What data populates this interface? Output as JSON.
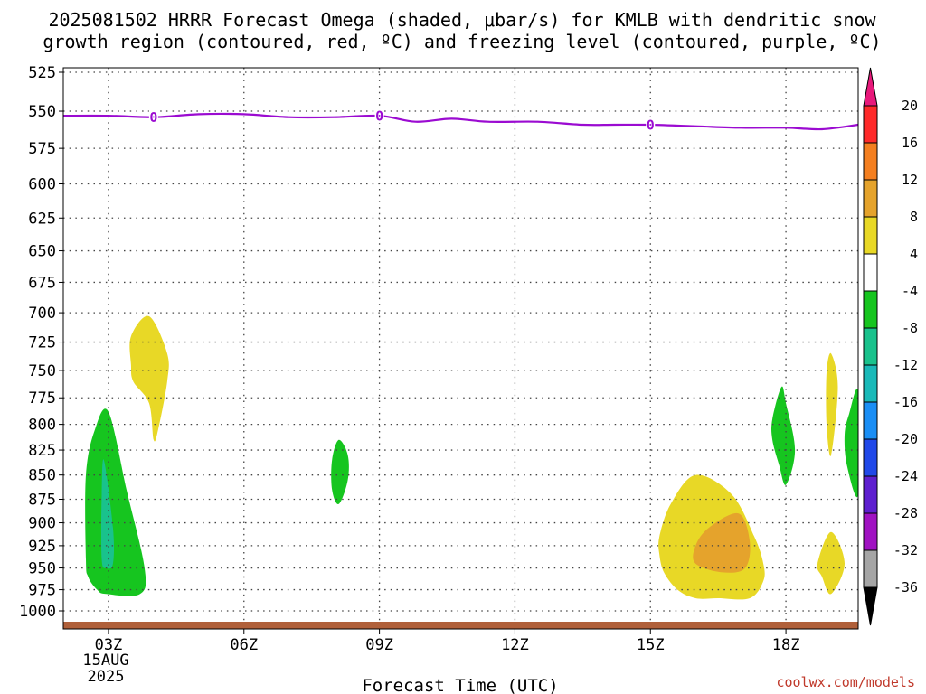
{
  "title": {
    "line1": "2025081502 HRRR Forecast Omega (shaded, μbar/s) for KMLB with dendritic snow",
    "line2": "growth region (contoured, red, ºC) and freezing level (contoured, purple, ºC)"
  },
  "credit": "coolwx.com/models",
  "chart_data": {
    "type": "contour",
    "title": "2025081502 HRRR Forecast Omega (shaded, μbar/s) for KMLB with dendritic snow growth region (contoured, red, ºC) and freezing level (contoured, purple, ºC)",
    "xlabel": "Forecast Time (UTC)",
    "ylabel": "",
    "x_ticks": [
      "03Z",
      "06Z",
      "09Z",
      "12Z",
      "15Z",
      "18Z"
    ],
    "x_tick_hours": [
      3,
      6,
      9,
      12,
      15,
      18
    ],
    "x_sublabels": [
      "15AUG",
      "2025"
    ],
    "xlim": [
      2,
      19.6
    ],
    "y_ticks": [
      525,
      550,
      575,
      600,
      625,
      650,
      675,
      700,
      725,
      750,
      775,
      800,
      825,
      850,
      875,
      900,
      925,
      950,
      975,
      1000
    ],
    "ylim": [
      1000,
      525
    ],
    "y_scale": "log",
    "grid": true,
    "colorbar": {
      "labels": [
        "20",
        "16",
        "12",
        "8",
        "4",
        "-4",
        "-8",
        "-12",
        "-16",
        "-20",
        "-24",
        "-28",
        "-32",
        "-36"
      ],
      "bins": [
        {
          "range": "16 to 20",
          "color": "#ff2a2a"
        },
        {
          "range": "12 to 16",
          "color": "#f47f20"
        },
        {
          "range": "8 to 12",
          "color": "#e5a32c"
        },
        {
          "range": "4 to 8",
          "color": "#e8d826"
        },
        {
          "range": "-4 to 4",
          "color": "#ffffff"
        },
        {
          "range": "-8 to -4",
          "color": "#16c51f"
        },
        {
          "range": "-12 to -8",
          "color": "#19c28c"
        },
        {
          "range": "-16 to -12",
          "color": "#19b9b8"
        },
        {
          "range": "-20 to -16",
          "color": "#1a8ef5"
        },
        {
          "range": "-24 to -20",
          "color": "#2048e8"
        },
        {
          "range": "-28 to -24",
          "color": "#5e1fcf"
        },
        {
          "range": "-32 to -28",
          "color": "#a012c2"
        },
        {
          "range": "-36 to -32",
          "color": "#a5a5a5"
        }
      ],
      "above_color": "#e8197b",
      "below_color": "#000000"
    },
    "freezing_level": {
      "label": "0",
      "color": "#9b0bd1",
      "points": [
        [
          2,
          553
        ],
        [
          3,
          553
        ],
        [
          4,
          554
        ],
        [
          5,
          552
        ],
        [
          6,
          552
        ],
        [
          7,
          554
        ],
        [
          8,
          554
        ],
        [
          9,
          553
        ],
        [
          9.8,
          557
        ],
        [
          10.6,
          555
        ],
        [
          11.4,
          557
        ],
        [
          12.5,
          557
        ],
        [
          13.5,
          559
        ],
        [
          14.2,
          559
        ],
        [
          15,
          559
        ],
        [
          16,
          560
        ],
        [
          17,
          561
        ],
        [
          18,
          561
        ],
        [
          18.8,
          562
        ],
        [
          19.6,
          559
        ]
      ],
      "label_hours": [
        4.0,
        9.0,
        15.0
      ]
    },
    "shaded_regions": [
      {
        "name": "green",
        "color": "#16c51f",
        "points": [
          [
            2.5,
            940
          ],
          [
            2.5,
            850
          ],
          [
            2.7,
            805
          ],
          [
            3.0,
            788
          ],
          [
            3.4,
            865
          ],
          [
            3.8,
            950
          ],
          [
            3.7,
            980
          ],
          [
            2.95,
            980
          ],
          [
            2.75,
            975
          ],
          [
            2.55,
            960
          ]
        ]
      },
      {
        "name": "teal",
        "color": "#19c28c",
        "points": [
          [
            2.85,
            870
          ],
          [
            2.9,
            835
          ],
          [
            3.1,
            905
          ],
          [
            3.1,
            945
          ],
          [
            2.95,
            950
          ],
          [
            2.85,
            940
          ]
        ]
      },
      {
        "name": "yellow",
        "color": "#e8d826",
        "points": [
          [
            3.5,
            720
          ],
          [
            3.9,
            703
          ],
          [
            4.3,
            735
          ],
          [
            4.3,
            760
          ],
          [
            4.1,
            805
          ],
          [
            4.0,
            815
          ],
          [
            3.9,
            780
          ],
          [
            3.55,
            760
          ],
          [
            3.5,
            745
          ]
        ]
      },
      {
        "name": "green",
        "color": "#16c51f",
        "points": [
          [
            7.95,
            835
          ],
          [
            8.1,
            815
          ],
          [
            8.3,
            830
          ],
          [
            8.3,
            855
          ],
          [
            8.1,
            880
          ],
          [
            7.95,
            865
          ]
        ]
      },
      {
        "name": "yellow",
        "color": "#e8d826",
        "points": [
          [
            15.2,
            915
          ],
          [
            15.45,
            880
          ],
          [
            16.0,
            850
          ],
          [
            16.8,
            870
          ],
          [
            17.3,
            915
          ],
          [
            17.5,
            945
          ],
          [
            17.5,
            965
          ],
          [
            17.2,
            985
          ],
          [
            16.5,
            985
          ],
          [
            16.0,
            985
          ],
          [
            15.6,
            975
          ],
          [
            15.3,
            955
          ],
          [
            15.2,
            935
          ]
        ]
      },
      {
        "name": "orange",
        "color": "#e5a32c",
        "points": [
          [
            16.0,
            925
          ],
          [
            16.3,
            905
          ],
          [
            16.95,
            890
          ],
          [
            17.2,
            920
          ],
          [
            17.1,
            950
          ],
          [
            16.6,
            955
          ],
          [
            16.0,
            945
          ]
        ]
      },
      {
        "name": "green",
        "color": "#16c51f",
        "points": [
          [
            17.7,
            795
          ],
          [
            17.9,
            765
          ],
          [
            18.0,
            780
          ],
          [
            18.2,
            825
          ],
          [
            18.0,
            860
          ],
          [
            17.85,
            840
          ],
          [
            17.7,
            815
          ]
        ]
      },
      {
        "name": "yellow",
        "color": "#e8d826",
        "points": [
          [
            18.9,
            752
          ],
          [
            19.0,
            735
          ],
          [
            19.15,
            765
          ],
          [
            19.0,
            830
          ],
          [
            18.9,
            800
          ]
        ]
      },
      {
        "name": "yellow",
        "color": "#e8d826",
        "points": [
          [
            18.7,
            945
          ],
          [
            19.0,
            910
          ],
          [
            19.3,
            945
          ],
          [
            19.0,
            980
          ],
          [
            18.8,
            960
          ]
        ]
      },
      {
        "name": "green",
        "color": "#16c51f",
        "points": [
          [
            19.6,
            770
          ],
          [
            19.6,
            870
          ],
          [
            19.35,
            840
          ],
          [
            19.3,
            810
          ],
          [
            19.4,
            790
          ]
        ]
      }
    ],
    "terrain": {
      "color": "#b0603a"
    }
  }
}
